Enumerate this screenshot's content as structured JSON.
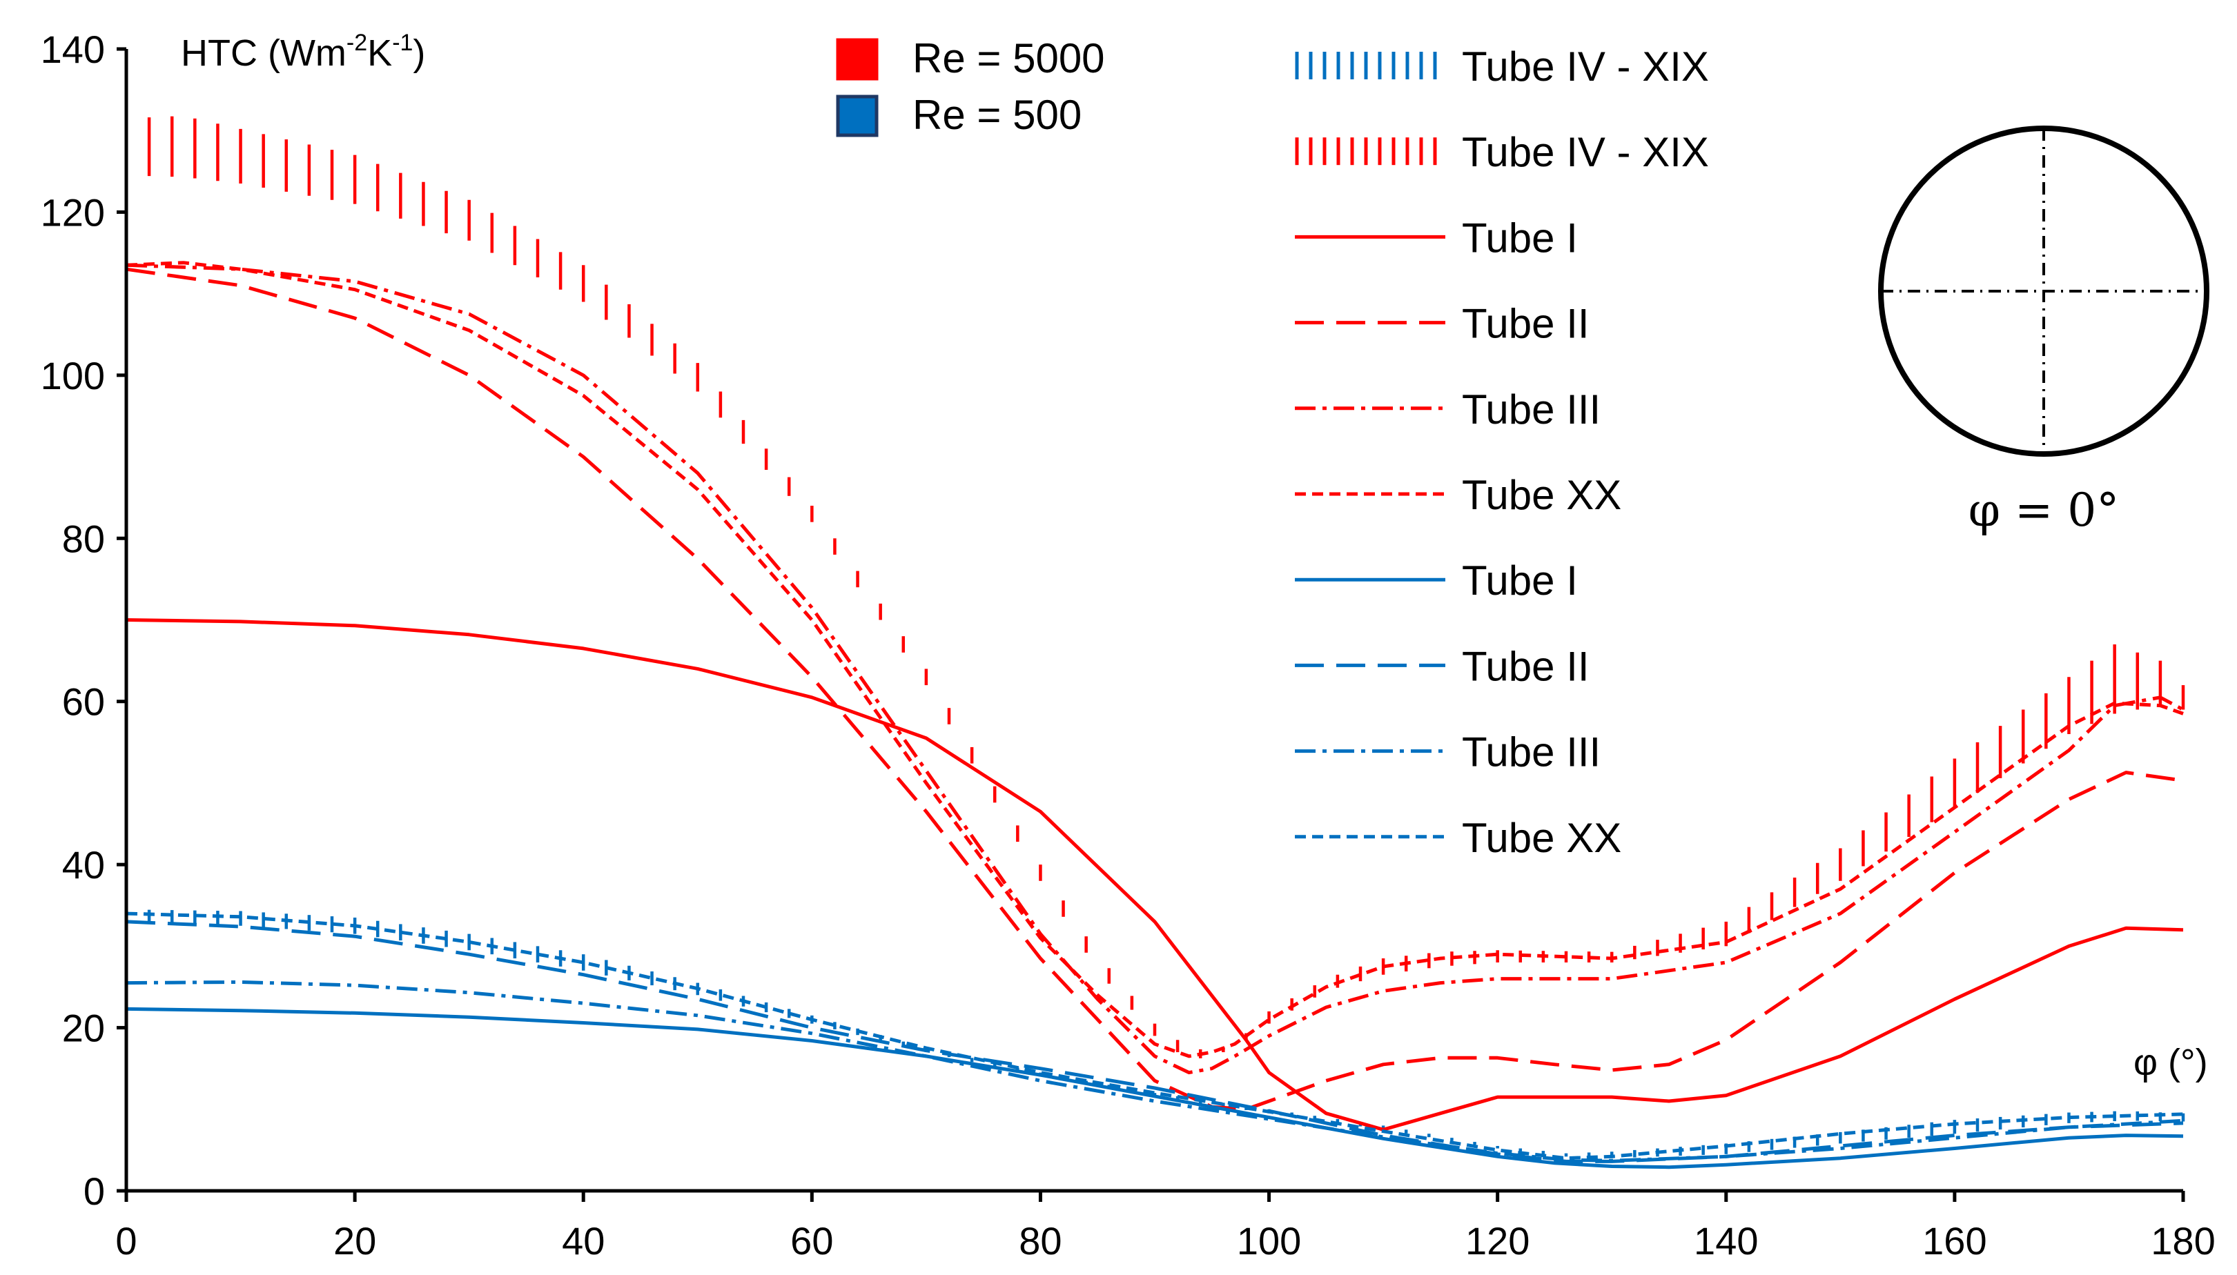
{
  "chart_data": {
    "type": "line",
    "title": "",
    "ylabel_prefix": "HTC (Wm",
    "ylabel_exp1": "-2",
    "ylabel_mid": "K",
    "ylabel_exp2": "-1",
    "ylabel_suffix": ")",
    "xlabel": "φ (°)",
    "xlim": [
      0,
      180
    ],
    "ylim": [
      0,
      140
    ],
    "xticks": [
      "0",
      "20",
      "40",
      "60",
      "80",
      "100",
      "120",
      "140",
      "160",
      "180"
    ],
    "yticks": [
      "0",
      "20",
      "40",
      "60",
      "80",
      "100",
      "120",
      "140"
    ],
    "grid": false,
    "colors": {
      "red": "#ff0000",
      "blue": "#0070c0"
    },
    "re_legend": [
      {
        "label": "Re = 5000",
        "color": "#ff0000"
      },
      {
        "label": "Re = 500",
        "color": "#0070c0"
      }
    ],
    "inset_label": "φ = 0°",
    "series": [
      {
        "name": "Tube IV - XIX",
        "group": "Re = 500",
        "color": "#0070c0",
        "style": "band",
        "x": [
          0,
          10,
          20,
          30,
          40,
          50,
          60,
          70,
          80,
          90,
          100,
          110,
          120,
          126,
          130,
          140,
          150,
          160,
          170,
          175,
          180
        ],
        "lower": [
          33,
          32.5,
          31.5,
          29.5,
          27,
          24,
          20.5,
          17,
          14,
          11.5,
          9.5,
          7.5,
          5.2,
          4.2,
          4.0,
          4.5,
          5.8,
          7.0,
          8.3,
          8.6,
          8.5
        ],
        "upper": [
          34.5,
          34.3,
          33.5,
          31.5,
          29,
          25.5,
          21.5,
          17.5,
          14.5,
          12,
          10,
          8,
          5.5,
          4.6,
          4.8,
          5.8,
          7.2,
          8.7,
          9.6,
          9.8,
          9.5
        ]
      },
      {
        "name": "Tube IV - XIX",
        "group": "Re = 5000",
        "color": "#ff0000",
        "style": "band",
        "x": [
          0,
          5,
          10,
          20,
          30,
          40,
          50,
          60,
          70,
          80,
          85,
          90,
          93,
          95,
          97,
          100,
          105,
          110,
          115,
          120,
          130,
          140,
          150,
          160,
          170,
          174,
          178,
          180
        ],
        "lower": [
          124.5,
          124.3,
          123.5,
          121,
          116.5,
          109,
          98,
          82,
          62,
          38,
          27,
          19,
          16,
          16.5,
          17.5,
          20.5,
          24.5,
          26.5,
          27.5,
          28,
          28,
          30,
          38,
          47,
          56,
          58.5,
          59.5,
          59
        ],
        "upper": [
          131.5,
          131.8,
          130.2,
          127,
          121.5,
          113.5,
          101.5,
          84,
          64,
          40,
          29,
          20.5,
          17.5,
          17.2,
          18,
          22,
          26,
          28.5,
          29.3,
          29.5,
          29.3,
          33,
          42,
          53,
          63,
          67,
          65,
          62
        ]
      },
      {
        "name": "Tube I",
        "group": "Re = 5000",
        "color": "#ff0000",
        "style": "solid",
        "x": [
          0,
          10,
          20,
          30,
          40,
          50,
          60,
          70,
          80,
          90,
          98,
          100,
          105,
          110,
          115,
          120,
          130,
          135,
          140,
          150,
          160,
          170,
          175,
          180
        ],
        "y": [
          70,
          69.8,
          69.3,
          68.2,
          66.5,
          64,
          60.5,
          55.5,
          46.5,
          33,
          18.5,
          14.5,
          9.5,
          7.5,
          9.5,
          11.5,
          11.5,
          11,
          11.7,
          16.5,
          23.5,
          30,
          32.2,
          32
        ]
      },
      {
        "name": "Tube II",
        "group": "Re = 5000",
        "color": "#ff0000",
        "style": "longdash",
        "x": [
          0,
          10,
          20,
          30,
          40,
          50,
          60,
          70,
          80,
          90,
          95,
          98,
          100,
          105,
          110,
          115,
          120,
          125,
          130,
          135,
          140,
          150,
          160,
          170,
          175,
          180
        ],
        "y": [
          113,
          111,
          107,
          100,
          90,
          77.5,
          63,
          46.5,
          28.5,
          13.5,
          10.3,
          10,
          11,
          13.5,
          15.5,
          16.3,
          16.3,
          15.5,
          14.8,
          15.5,
          18.5,
          28,
          39,
          48,
          51.3,
          50.3
        ]
      },
      {
        "name": "Tube III",
        "group": "Re = 5000",
        "color": "#ff0000",
        "style": "dashdot",
        "x": [
          0,
          10,
          20,
          30,
          40,
          50,
          60,
          70,
          80,
          85,
          90,
          93,
          95,
          97,
          100,
          105,
          110,
          115,
          120,
          130,
          140,
          150,
          160,
          170,
          174,
          178,
          180
        ],
        "y": [
          113.5,
          113,
          111.5,
          107.5,
          100,
          88,
          71.5,
          51.5,
          31.5,
          23.5,
          16.5,
          14.5,
          15,
          16.5,
          19,
          22.5,
          24.5,
          25.5,
          26,
          26,
          28,
          34,
          44,
          54,
          59.5,
          60.5,
          59
        ]
      },
      {
        "name": "Tube XX",
        "group": "Re = 5000",
        "color": "#ff0000",
        "style": "shortdash",
        "x": [
          0,
          5,
          10,
          20,
          30,
          40,
          50,
          60,
          70,
          80,
          85,
          90,
          93,
          95,
          97,
          100,
          105,
          110,
          115,
          120,
          130,
          140,
          150,
          160,
          170,
          174,
          178,
          180
        ],
        "y": [
          113.5,
          113.8,
          113,
          110.5,
          105.5,
          97.5,
          86,
          70,
          50,
          31,
          24,
          18,
          16.5,
          17,
          18,
          21,
          25,
          27.5,
          28.5,
          29,
          28.5,
          30.5,
          37,
          47,
          57,
          59.8,
          59.5,
          58.5
        ]
      },
      {
        "name": "Tube I",
        "group": "Re = 500",
        "color": "#0070c0",
        "style": "solid",
        "x": [
          0,
          10,
          20,
          30,
          40,
          50,
          60,
          70,
          80,
          90,
          100,
          110,
          120,
          125,
          130,
          135,
          140,
          150,
          160,
          170,
          175,
          180
        ],
        "y": [
          22.3,
          22.1,
          21.8,
          21.3,
          20.6,
          19.8,
          18.4,
          16.5,
          14.2,
          11.6,
          9,
          6.4,
          4.2,
          3.4,
          3.0,
          2.9,
          3.2,
          4.0,
          5.2,
          6.5,
          6.8,
          6.7
        ]
      },
      {
        "name": "Tube II",
        "group": "Re = 500",
        "color": "#0070c0",
        "style": "longdash",
        "x": [
          0,
          10,
          20,
          30,
          40,
          50,
          60,
          70,
          80,
          90,
          100,
          110,
          120,
          126,
          130,
          140,
          150,
          160,
          170,
          180
        ],
        "y": [
          33,
          32.4,
          31.2,
          29,
          26.5,
          23.5,
          20,
          17.2,
          15,
          12.6,
          9.8,
          6.8,
          4.5,
          3.6,
          3.6,
          4.2,
          5.5,
          6.8,
          7.8,
          8.3
        ]
      },
      {
        "name": "Tube III",
        "group": "Re = 500",
        "color": "#0070c0",
        "style": "dashdot",
        "x": [
          0,
          10,
          20,
          30,
          40,
          50,
          60,
          70,
          80,
          90,
          100,
          110,
          120,
          126,
          130,
          140,
          150,
          160,
          170,
          180
        ],
        "y": [
          25.5,
          25.6,
          25.2,
          24.3,
          23,
          21.5,
          19.3,
          16.5,
          13.5,
          11,
          8.8,
          6.6,
          4.6,
          3.8,
          3.7,
          4.2,
          5.2,
          6.5,
          7.8,
          8.6
        ]
      },
      {
        "name": "Tube XX",
        "group": "Re = 500",
        "color": "#0070c0",
        "style": "shortdash",
        "x": [
          0,
          10,
          20,
          30,
          40,
          50,
          60,
          70,
          80,
          90,
          100,
          110,
          120,
          126,
          130,
          140,
          150,
          160,
          170,
          180
        ],
        "y": [
          34,
          33.6,
          32.5,
          30.5,
          28,
          24.8,
          21,
          17.5,
          14.5,
          12,
          9.7,
          7.3,
          5,
          4.0,
          4.2,
          5.5,
          7.0,
          8.2,
          9.0,
          9.4
        ]
      }
    ]
  }
}
